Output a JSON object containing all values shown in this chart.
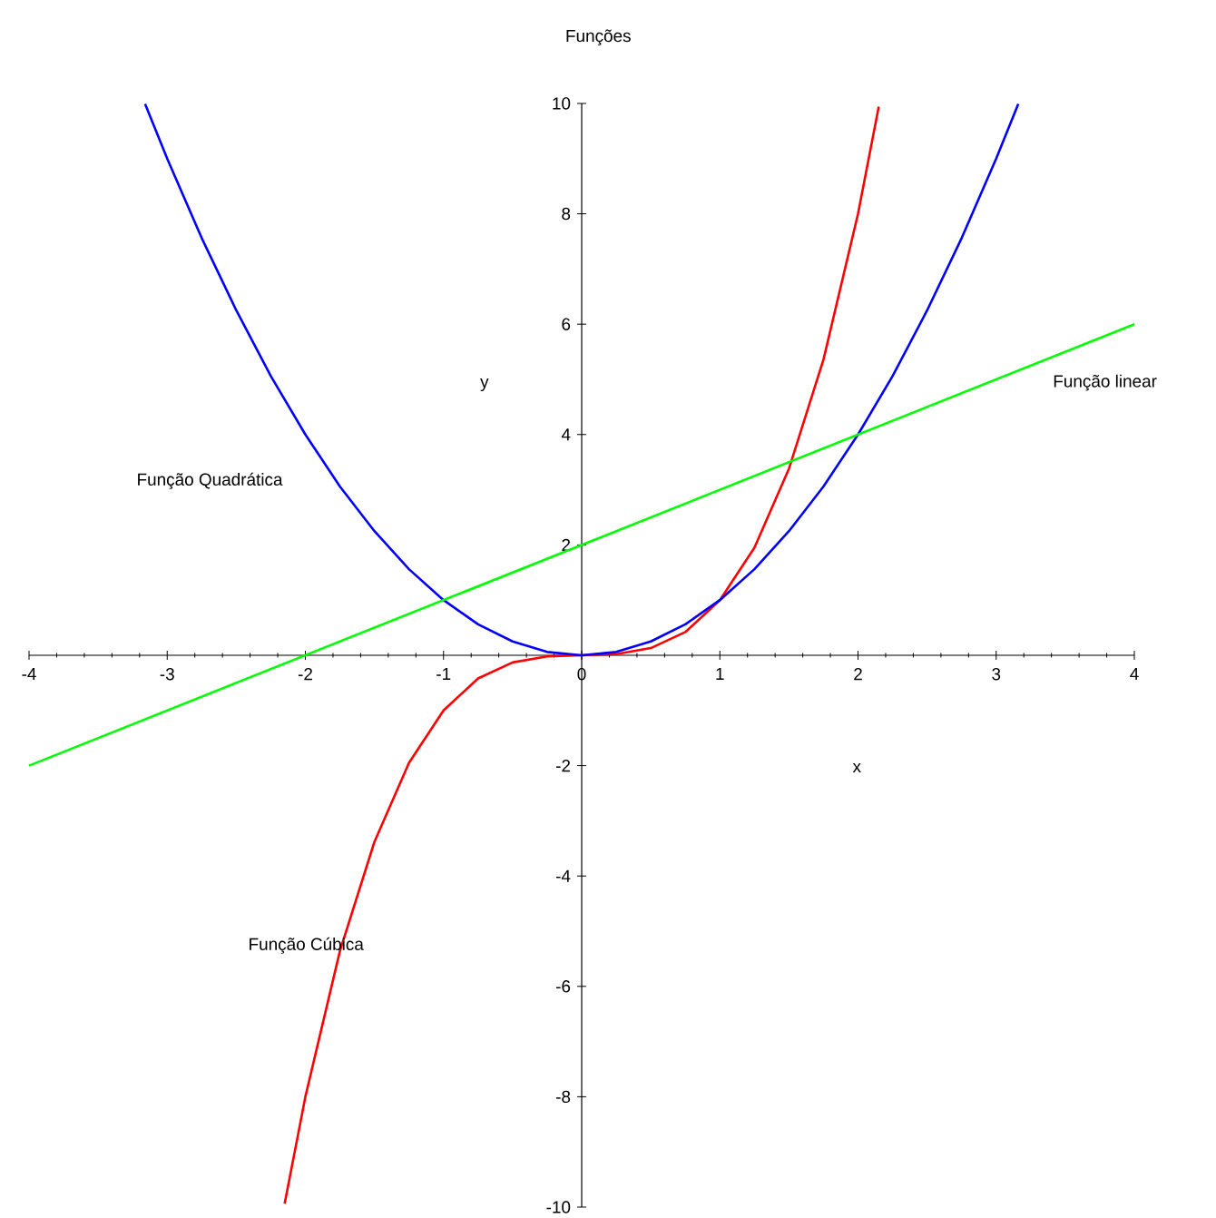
{
  "chart_data": {
    "type": "line",
    "title": "Funções",
    "xlabel": "x",
    "ylabel": "y",
    "xlim": [
      -4,
      4
    ],
    "ylim": [
      -10,
      10
    ],
    "xticks": [
      -4,
      -3,
      -2,
      -1,
      0,
      1,
      2,
      3,
      4
    ],
    "yticks": [
      -10,
      -8,
      -6,
      -4,
      -2,
      2,
      4,
      6,
      8,
      10
    ],
    "series": [
      {
        "color": "#ff0000",
        "x": [
          -2.15,
          -2,
          -1.75,
          -1.5,
          -1.25,
          -1,
          -0.75,
          -0.5,
          -0.25,
          0,
          0.25,
          0.5,
          0.75,
          1,
          1.25,
          1.5,
          1.75,
          2,
          2.15
        ],
        "values": [
          -9.94,
          -8,
          -5.36,
          -3.38,
          -1.95,
          -1,
          -0.42,
          -0.13,
          -0.02,
          0,
          0.02,
          0.13,
          0.42,
          1,
          1.95,
          3.38,
          5.36,
          8,
          9.94
        ]
      },
      {
        "color": "#0000ff",
        "x": [
          -3.16,
          -3,
          -2.75,
          -2.5,
          -2.25,
          -2,
          -1.75,
          -1.5,
          -1.25,
          -1,
          -0.75,
          -0.5,
          -0.25,
          0,
          0.25,
          0.5,
          0.75,
          1,
          1.25,
          1.5,
          1.75,
          2,
          2.25,
          2.5,
          2.75,
          3,
          3.16
        ],
        "values": [
          9.99,
          9,
          7.56,
          6.25,
          5.06,
          4,
          3.06,
          2.25,
          1.56,
          1,
          0.56,
          0.25,
          0.06,
          0,
          0.06,
          0.25,
          0.56,
          1,
          1.56,
          2.25,
          3.06,
          4,
          5.06,
          6.25,
          7.56,
          9,
          9.99
        ]
      },
      {
        "color": "#00ff00",
        "x": [
          -4,
          4
        ],
        "values": [
          -2,
          6
        ]
      }
    ],
    "annotations": [
      "Função Quadrática",
      "Função Cúbica",
      "Função linear"
    ]
  }
}
